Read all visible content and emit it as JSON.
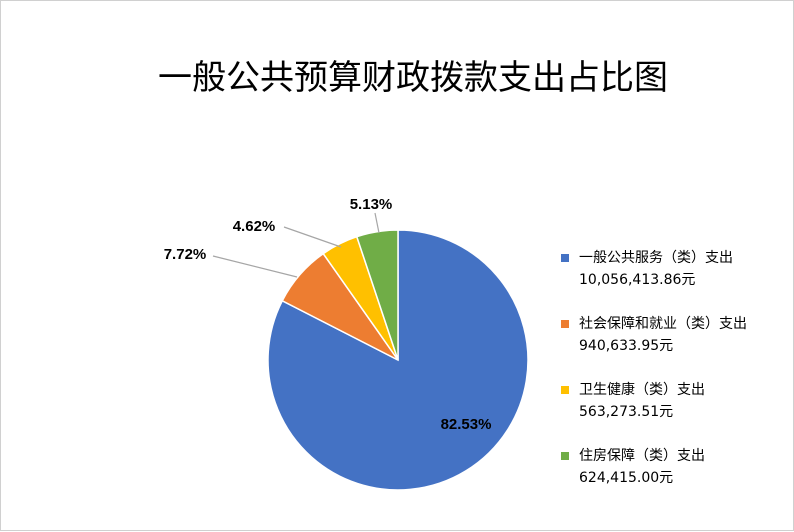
{
  "chart_data": {
    "type": "pie",
    "title": "一般公共预算财政拨款支出占比图",
    "slices": [
      {
        "name": "一般公共服务（类）支出",
        "amount": "10,056,413.86元",
        "value": 82.53,
        "label": "82.53%",
        "color": "#4472C4"
      },
      {
        "name": "社会保障和就业（类）支出",
        "amount": "940,633.95元",
        "value": 7.72,
        "label": "7.72%",
        "color": "#ED7D31"
      },
      {
        "name": "卫生健康（类）支出",
        "amount": "563,273.51元",
        "value": 4.62,
        "label": "4.62%",
        "color": "#FFC000"
      },
      {
        "name": "住房保障（类）支出",
        "amount": "624,415.00元",
        "value": 5.13,
        "label": "5.13%",
        "color": "#70AD47"
      }
    ],
    "legend_position": "right"
  }
}
